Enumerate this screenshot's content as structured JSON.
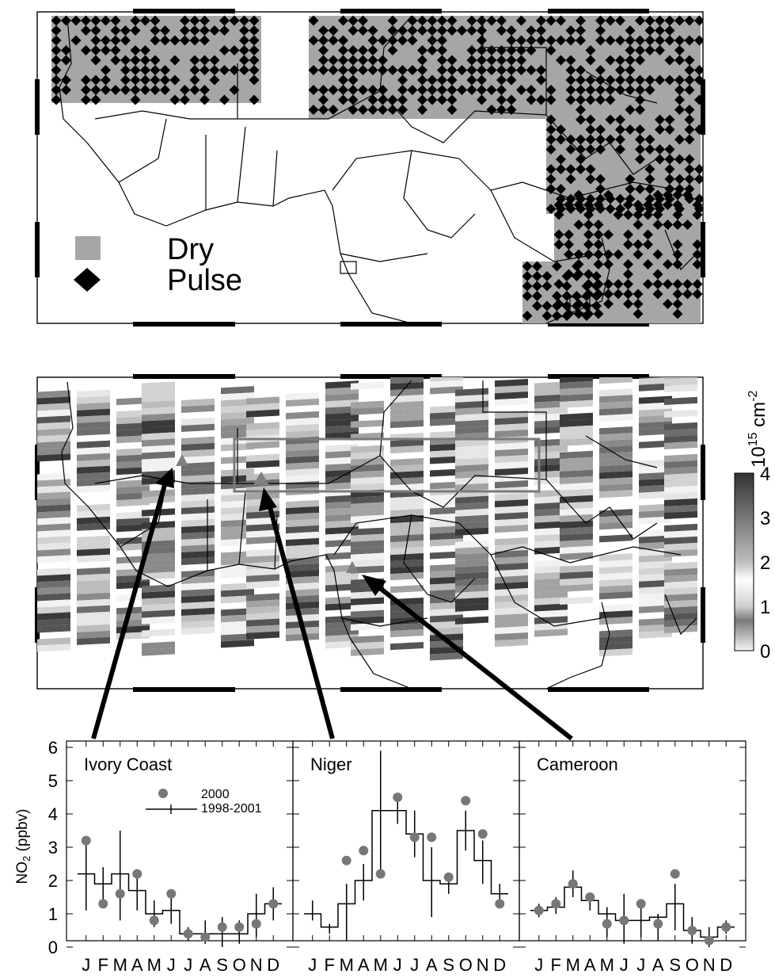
{
  "map_top": {
    "legend": {
      "dry_label": "Dry",
      "pulse_label": "Pulse",
      "dry_color": "#a6a6a6",
      "pulse_color": "#000000"
    }
  },
  "map_bottom": {
    "colorbar": {
      "unit_base": "10",
      "unit_exp": "15",
      "unit_rest": " cm",
      "unit_exp2": "-2",
      "ticks": [
        "0",
        "1",
        "2",
        "3",
        "4"
      ],
      "range": [
        0,
        4
      ]
    },
    "box_color": "#7a7a7a",
    "site_marker_color": "#808080"
  },
  "chart_data": [
    {
      "type": "line",
      "title": "Ivory Coast",
      "ylabel": "NO2 (ppbv)",
      "ylim": [
        0,
        6
      ],
      "yticks": [
        "0",
        "1",
        "2",
        "3",
        "4",
        "5",
        "6"
      ],
      "x": [
        "J",
        "F",
        "M",
        "A",
        "M",
        "J",
        "J",
        "A",
        "S",
        "O",
        "N",
        "D"
      ],
      "legend": [
        "2000",
        "1998-2001"
      ],
      "series": [
        {
          "name": "2000",
          "values": [
            3.2,
            1.3,
            1.6,
            2.2,
            0.8,
            1.6,
            0.4,
            0.3,
            0.6,
            0.6,
            0.7,
            1.3
          ]
        },
        {
          "name": "1998-2001",
          "values": [
            2.2,
            1.9,
            2.2,
            1.7,
            1.0,
            1.1,
            0.4,
            0.4,
            0.4,
            0.4,
            1.0,
            1.3
          ],
          "err_low": [
            1.1,
            1.4,
            0.8,
            1.1,
            0.6,
            0.7,
            0.2,
            0.1,
            0.0,
            0.1,
            0.3,
            0.8
          ],
          "err_high": [
            3.2,
            2.4,
            3.5,
            2.2,
            1.4,
            1.5,
            0.6,
            0.8,
            0.9,
            0.8,
            1.6,
            1.8
          ]
        }
      ]
    },
    {
      "type": "line",
      "title": "Niger",
      "ylim": [
        0,
        6
      ],
      "x": [
        "J",
        "F",
        "M",
        "A",
        "M",
        "J",
        "J",
        "A",
        "S",
        "O",
        "N",
        "D"
      ],
      "series": [
        {
          "name": "2000",
          "values": [
            null,
            null,
            2.6,
            2.9,
            2.2,
            4.5,
            3.3,
            3.3,
            2.1,
            4.4,
            3.4,
            1.3
          ]
        },
        {
          "name": "1998-2001",
          "values": [
            1.0,
            0.6,
            1.3,
            2.0,
            4.1,
            4.1,
            3.4,
            2.0,
            1.9,
            3.5,
            2.6,
            1.6
          ],
          "err_low": [
            0.8,
            0.4,
            0.2,
            1.4,
            2.2,
            3.7,
            2.7,
            0.9,
            1.6,
            2.9,
            1.9,
            1.3
          ],
          "err_high": [
            1.4,
            0.7,
            1.9,
            2.5,
            5.9,
            4.5,
            4.1,
            3.0,
            2.2,
            4.1,
            3.2,
            1.9
          ]
        }
      ]
    },
    {
      "type": "line",
      "title": "Cameroon",
      "ylim": [
        0,
        6
      ],
      "x": [
        "J",
        "F",
        "M",
        "A",
        "M",
        "J",
        "J",
        "A",
        "S",
        "O",
        "N",
        "D"
      ],
      "series": [
        {
          "name": "2000",
          "values": [
            1.1,
            1.3,
            1.9,
            1.5,
            0.7,
            0.8,
            1.3,
            0.7,
            2.2,
            0.5,
            0.2,
            0.6
          ]
        },
        {
          "name": "1998-2001",
          "values": [
            1.1,
            1.2,
            1.8,
            1.4,
            1.0,
            0.8,
            0.8,
            0.9,
            1.3,
            0.5,
            0.3,
            0.6
          ],
          "err_low": [
            0.9,
            1.0,
            1.5,
            1.1,
            0.3,
            0.1,
            0.3,
            0.2,
            0.5,
            0.1,
            0.0,
            0.4
          ],
          "err_high": [
            1.3,
            1.5,
            2.3,
            1.6,
            1.2,
            1.6,
            1.2,
            1.0,
            1.9,
            0.9,
            0.6,
            0.8
          ]
        }
      ]
    }
  ]
}
